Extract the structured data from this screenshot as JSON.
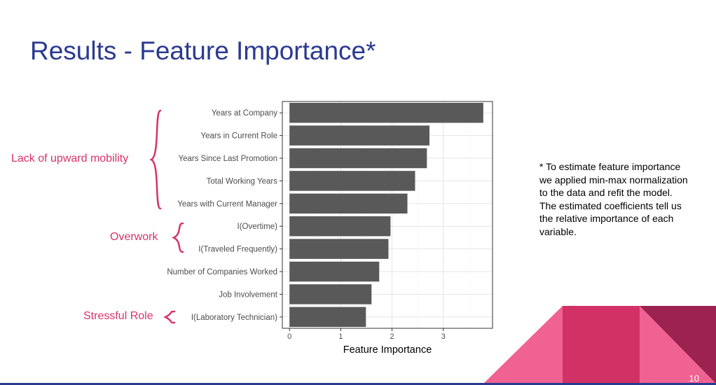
{
  "slide": {
    "title": "Results - Feature Importance*",
    "page_number": "10",
    "footnote": "* To estimate feature importance we applied min-max normalization to the data and refit the model. The estimated coefficients tell us the relative importance of each variable."
  },
  "groups": [
    {
      "label": "Lack of upward mobility",
      "features": [
        "Years at Company",
        "Years in Current Role",
        "Years Since Last Promotion",
        "Total Working Years",
        "Years with Current Manager"
      ]
    },
    {
      "label": "Overwork",
      "features": [
        "I(Overtime)",
        "I(Traveled Frequently)"
      ]
    },
    {
      "label": "Stressful Role",
      "features": [
        "I(Laboratory Technician)"
      ]
    }
  ],
  "colors": {
    "title": "#2b3a8f",
    "group_label": "#d6336c",
    "bar": "#595959",
    "deco_light": "#f06292",
    "deco_mid": "#d23165",
    "deco_dark": "#9c2250"
  },
  "chart_data": {
    "type": "bar",
    "orientation": "horizontal",
    "categories": [
      "Years at Company",
      "Years in Current Role",
      "Years Since Last Promotion",
      "Total Working Years",
      "Years with Current Manager",
      "I(Overtime)",
      "I(Traveled Frequently)",
      "Number of Companies Worked",
      "Job Involvement",
      "I(Laboratory Technician)"
    ],
    "values": [
      3.78,
      2.73,
      2.68,
      2.45,
      2.3,
      1.97,
      1.93,
      1.75,
      1.6,
      1.49
    ],
    "xlabel": "Feature Importance",
    "ylabel": "",
    "xlim": [
      -0.14,
      3.96
    ],
    "xticks": [
      0,
      1,
      2,
      3
    ],
    "grid": true
  }
}
